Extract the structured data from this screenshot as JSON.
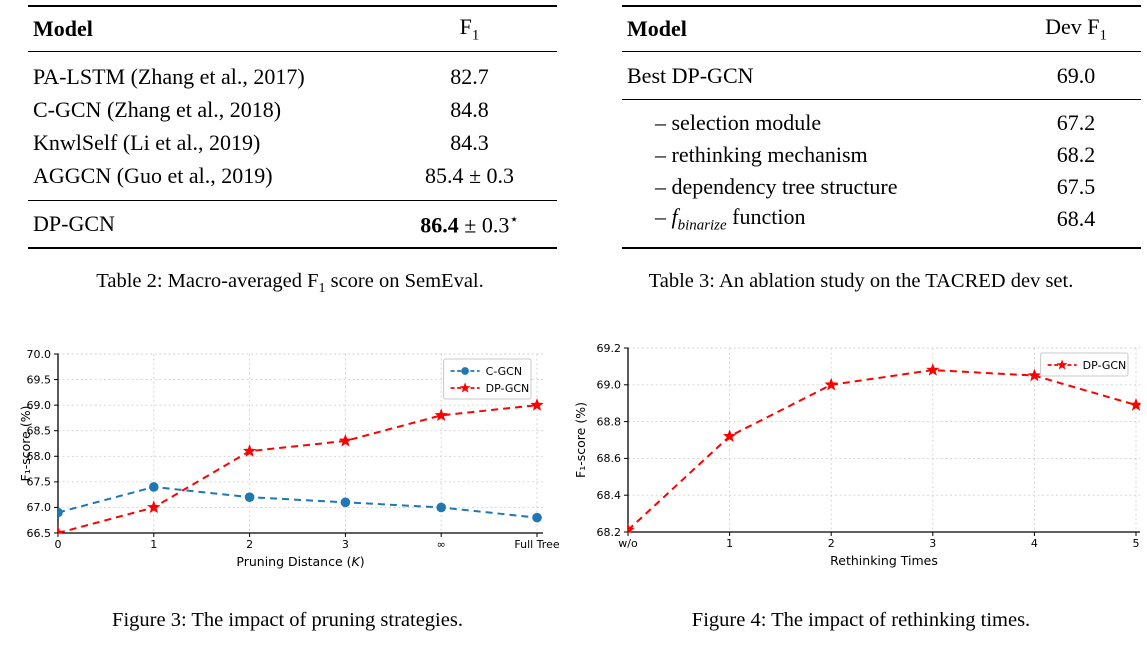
{
  "table2": {
    "header": {
      "model": "Model",
      "score_main": "F",
      "score_sub": "1"
    },
    "rows": [
      {
        "model": "PA-LSTM (Zhang et al., 2017)",
        "score": "82.7"
      },
      {
        "model": "C-GCN (Zhang et al., 2018)",
        "score": "84.8"
      },
      {
        "model": "KnwlSelf (Li et al., 2019)",
        "score": "84.3"
      },
      {
        "model": "AGGCN (Guo et al., 2019)",
        "score": "85.4 ± 0.3"
      }
    ],
    "highlight_row": {
      "model": "DP-GCN",
      "score_bold": "86.4",
      "score_rest": " ± 0.3",
      "score_sup": "⋆"
    },
    "caption": {
      "pre": "Table 2: Macro-averaged F",
      "sub": "1",
      "post": " score on SemEval."
    }
  },
  "table3": {
    "header": {
      "model": "Model",
      "score_pre": "Dev F",
      "score_sub": "1"
    },
    "top_row": {
      "model": "Best DP-GCN",
      "score": "69.0"
    },
    "ablation_rows": [
      {
        "label": "– selection module",
        "score": "67.2"
      },
      {
        "label": "– rethinking mechanism",
        "score": "68.2"
      },
      {
        "label": "– dependency tree structure",
        "score": "67.5"
      },
      {
        "prefix": "– ",
        "math": "f",
        "math_sub": "binarize",
        "suffix": " function",
        "score": "68.4"
      }
    ],
    "caption": "Table 3: An ablation study on the TACRED dev set."
  },
  "figures": {
    "figure3_caption": "Figure 3: The impact of pruning strategies.",
    "figure4_caption": "Figure 4: The impact of rethinking times."
  },
  "chart_data": [
    {
      "id": "figure3",
      "type": "line",
      "title": "",
      "categories": [
        "0",
        "1",
        "2",
        "3",
        "∞",
        "Full Tree"
      ],
      "series": [
        {
          "name": "C-GCN",
          "color": "#1f77b4",
          "marker": "circle",
          "values": [
            66.9,
            67.4,
            67.2,
            67.1,
            67.0,
            66.8
          ]
        },
        {
          "name": "DP-GCN",
          "color": "#ff0000",
          "marker": "star",
          "values": [
            66.5,
            67.0,
            68.1,
            68.3,
            68.8,
            69.0
          ]
        }
      ],
      "ylabel": "F₁-score (%)",
      "xlabel_parts": [
        {
          "t": "Pruning Distance ("
        },
        {
          "t": "K",
          "italic": true
        },
        {
          "t": ")"
        }
      ],
      "ylim": [
        66.5,
        70.0
      ],
      "ytick_step": 0.5,
      "grid": true,
      "grid_color": "#d2d2d2",
      "legend_position": "upper right"
    },
    {
      "id": "figure4",
      "type": "line",
      "title": "",
      "categories": [
        "w/o",
        "1",
        "2",
        "3",
        "4",
        "5"
      ],
      "series": [
        {
          "name": "DP-GCN",
          "color": "#ff0000",
          "marker": "star",
          "values": [
            68.21,
            68.72,
            69.0,
            69.08,
            69.05,
            68.89
          ]
        }
      ],
      "ylabel": "F₁-score (%)",
      "xlabel_parts": [
        {
          "t": "Rethinking Times"
        }
      ],
      "ylim": [
        68.2,
        69.2
      ],
      "ytick_step": 0.2,
      "grid": true,
      "grid_color": "#d2d2d2",
      "legend_position": "upper right"
    }
  ]
}
